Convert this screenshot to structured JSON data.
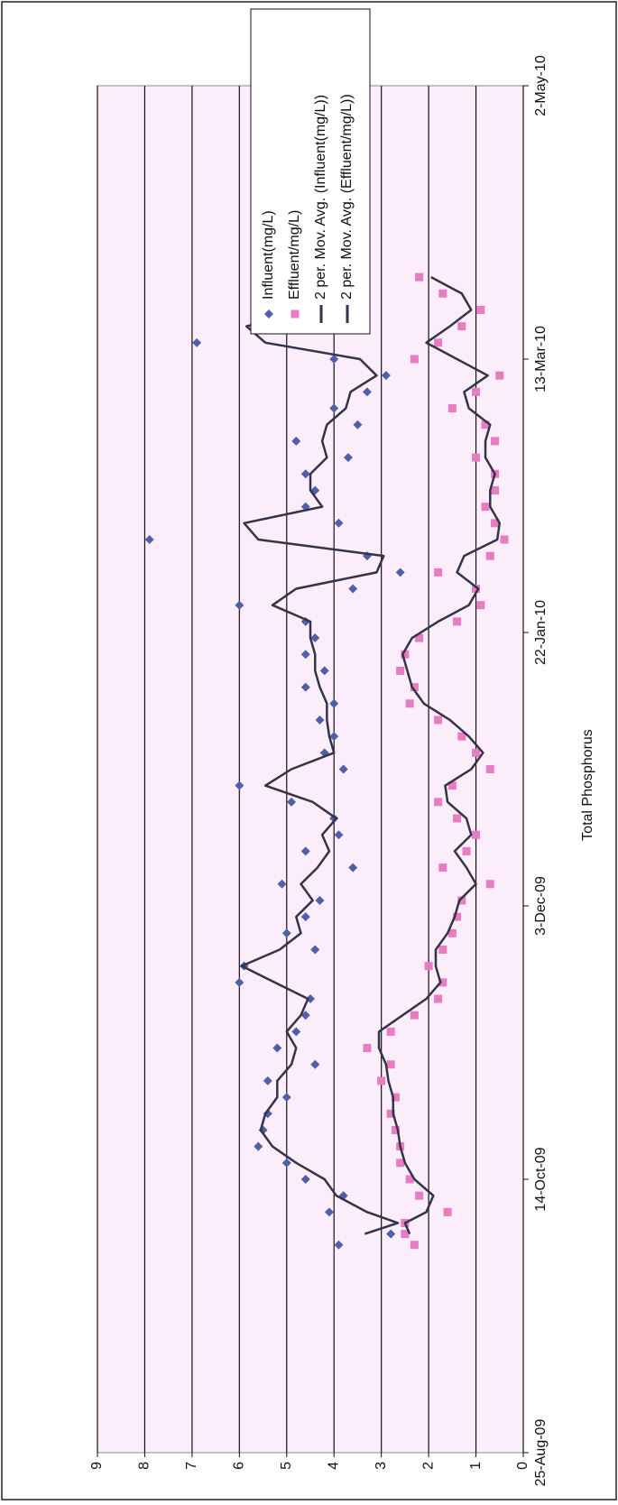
{
  "chart_data": {
    "type": "scatter",
    "title": "Total Phosphorus",
    "x": [
      "2009-10-02",
      "2009-10-04",
      "2009-10-06",
      "2009-10-08",
      "2009-10-11",
      "2009-10-14",
      "2009-10-17",
      "2009-10-20",
      "2009-10-23",
      "2009-10-26",
      "2009-10-29",
      "2009-11-01",
      "2009-11-04",
      "2009-11-07",
      "2009-11-10",
      "2009-11-13",
      "2009-11-16",
      "2009-11-19",
      "2009-11-22",
      "2009-11-25",
      "2009-11-28",
      "2009-12-01",
      "2009-12-04",
      "2009-12-07",
      "2009-12-10",
      "2009-12-13",
      "2009-12-16",
      "2009-12-19",
      "2009-12-22",
      "2009-12-25",
      "2009-12-28",
      "2009-12-31",
      "2010-01-03",
      "2010-01-06",
      "2010-01-09",
      "2010-01-12",
      "2010-01-15",
      "2010-01-18",
      "2010-01-21",
      "2010-01-24",
      "2010-01-27",
      "2010-01-30",
      "2010-02-02",
      "2010-02-05",
      "2010-02-08",
      "2010-02-11",
      "2010-02-14",
      "2010-02-17",
      "2010-02-20",
      "2010-02-23",
      "2010-02-26",
      "2010-03-01",
      "2010-03-04",
      "2010-03-07",
      "2010-03-10",
      "2010-03-13",
      "2010-03-16",
      "2010-03-19",
      "2010-03-22",
      "2010-03-25",
      "2010-03-28"
    ],
    "series": [
      {
        "name": "Influent(mg/L)",
        "color": "#4f5fa8",
        "marker": "diamond",
        "values": [
          3.9,
          2.8,
          2.5,
          4.1,
          3.8,
          4.6,
          5.0,
          5.6,
          5.5,
          5.4,
          5.0,
          5.4,
          4.4,
          5.2,
          4.8,
          4.6,
          4.5,
          6.0,
          5.9,
          4.4,
          5.0,
          4.6,
          4.3,
          5.1,
          3.6,
          4.6,
          3.9,
          4.0,
          4.9,
          6.0,
          3.8,
          4.2,
          4.0,
          4.3,
          4.0,
          4.6,
          4.2,
          4.6,
          4.4,
          4.6,
          6.0,
          3.6,
          2.6,
          3.3,
          7.9,
          3.9,
          4.6,
          4.4,
          4.6,
          3.7,
          4.8,
          3.5,
          4.0,
          3.3,
          2.9,
          4.0,
          6.9,
          4.8,
          4.0,
          3.9,
          3.8
        ]
      },
      {
        "name": "Effluent/mg/L)",
        "color": "#e77cc0",
        "marker": "square",
        "values": [
          2.3,
          2.5,
          2.5,
          1.6,
          2.2,
          2.4,
          2.6,
          2.6,
          2.7,
          2.8,
          2.7,
          3.0,
          2.8,
          3.3,
          2.8,
          2.3,
          1.8,
          1.7,
          2.0,
          1.7,
          1.5,
          1.4,
          1.3,
          0.7,
          1.7,
          1.2,
          1.0,
          1.4,
          1.8,
          1.5,
          0.7,
          1.0,
          1.3,
          1.8,
          2.4,
          2.3,
          2.6,
          2.5,
          2.2,
          1.4,
          0.9,
          1.0,
          1.8,
          0.7,
          0.4,
          0.6,
          0.8,
          0.6,
          0.6,
          1.0,
          0.6,
          0.8,
          1.5,
          1.0,
          0.5,
          2.3,
          1.8,
          1.3,
          0.9,
          1.7,
          2.2
        ]
      },
      {
        "name": "2 per. Mov. Avg. (Influent(mg/L))",
        "color": "#33334a",
        "marker": "line",
        "values": [
          null,
          3.35,
          2.65,
          3.3,
          3.95,
          4.2,
          4.8,
          5.3,
          5.55,
          5.45,
          5.2,
          5.2,
          4.9,
          4.8,
          5.0,
          4.7,
          4.55,
          5.25,
          5.95,
          5.15,
          4.7,
          4.8,
          4.45,
          4.7,
          4.35,
          4.1,
          4.25,
          3.95,
          4.45,
          5.45,
          4.9,
          4.0,
          4.1,
          4.15,
          4.15,
          4.3,
          4.4,
          4.4,
          4.5,
          4.5,
          5.3,
          4.8,
          3.1,
          2.95,
          5.6,
          5.9,
          4.25,
          4.5,
          4.5,
          4.15,
          4.25,
          4.15,
          3.75,
          3.65,
          3.1,
          3.45,
          5.45,
          5.85,
          4.4,
          3.95,
          3.85
        ]
      },
      {
        "name": "2 per. Mov. Avg. (Effluent/mg/L))",
        "color": "#33334a",
        "marker": "line",
        "values": [
          null,
          2.4,
          2.5,
          2.05,
          1.9,
          2.3,
          2.5,
          2.6,
          2.65,
          2.75,
          2.75,
          2.85,
          2.9,
          3.05,
          3.05,
          2.55,
          2.05,
          1.75,
          1.85,
          1.85,
          1.6,
          1.45,
          1.35,
          1.0,
          1.2,
          1.45,
          1.1,
          1.2,
          1.6,
          1.65,
          1.1,
          0.85,
          1.15,
          1.55,
          2.1,
          2.35,
          2.45,
          2.55,
          2.35,
          1.8,
          1.15,
          0.95,
          1.4,
          1.25,
          0.55,
          0.5,
          0.7,
          0.7,
          0.6,
          0.8,
          0.8,
          0.7,
          1.15,
          1.25,
          0.75,
          1.4,
          2.05,
          1.55,
          1.1,
          1.3,
          1.95
        ]
      }
    ],
    "xlim": [
      "2009-08-25",
      "2010-05-02"
    ],
    "xticks": [
      {
        "value": "2009-08-25",
        "label": "25-Aug-09"
      },
      {
        "value": "2009-10-14",
        "label": "14-Oct-09"
      },
      {
        "value": "2009-12-03",
        "label": "3-Dec-09"
      },
      {
        "value": "2010-01-22",
        "label": "22-Jan-10"
      },
      {
        "value": "2010-03-13",
        "label": "13-Mar-10"
      },
      {
        "value": "2010-05-02",
        "label": "2-May-10"
      }
    ],
    "ylim": [
      0,
      9
    ],
    "yticks": [
      0,
      1,
      2,
      3,
      4,
      5,
      6,
      7,
      8,
      9
    ],
    "grid": true,
    "plot_background": "#fcedfb"
  }
}
